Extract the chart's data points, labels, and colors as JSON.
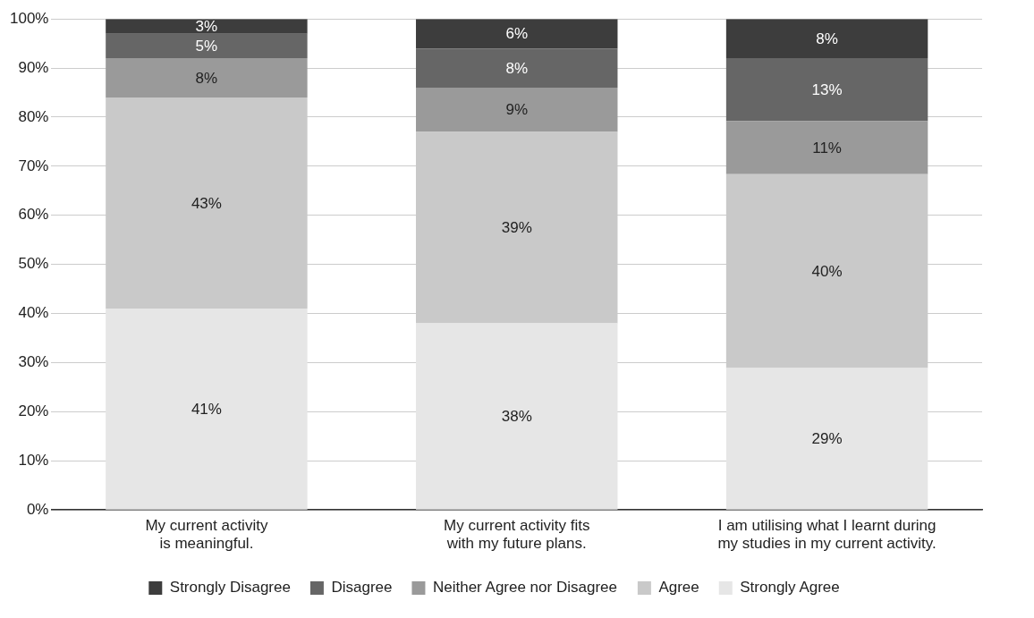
{
  "chart_data": {
    "type": "bar",
    "stacked": true,
    "categories": [
      "My current activity is meaningful.",
      "My current activity fits with my future plans.",
      "I am utilising what I learnt during my studies in my current activity."
    ],
    "series": [
      {
        "name": "Strongly Agree",
        "color": "#e6e6e6",
        "values": [
          41,
          38,
          28.9
        ],
        "value_labels": [
          "41%",
          "38%",
          "29%"
        ]
      },
      {
        "name": "Agree",
        "color": "#c9c9c9",
        "values": [
          43,
          39,
          39.5
        ],
        "value_labels": [
          "43%",
          "39%",
          "40%"
        ]
      },
      {
        "name": "Neither Agree nor Disagree",
        "color": "#9a9a9a",
        "values": [
          8,
          9,
          10.8
        ],
        "value_labels": [
          "8%",
          "9%",
          "11%"
        ]
      },
      {
        "name": "Disagree",
        "color": "#666666",
        "values": [
          5,
          8,
          12.8
        ],
        "value_labels": [
          "5%",
          "8%",
          "13%"
        ]
      },
      {
        "name": "Strongly Disagree",
        "color": "#3d3d3d",
        "values": [
          3,
          6,
          8
        ],
        "value_labels": [
          "3%",
          "6%",
          "8%"
        ]
      }
    ],
    "ylim": [
      0,
      100
    ],
    "yticks": [
      {
        "value": 0,
        "label": "0%"
      },
      {
        "value": 10,
        "label": "10%"
      },
      {
        "value": 20,
        "label": "20%"
      },
      {
        "value": 30,
        "label": "30%"
      },
      {
        "value": 40,
        "label": "40%"
      },
      {
        "value": 50,
        "label": "50%"
      },
      {
        "value": 60,
        "label": "60%"
      },
      {
        "value": 70,
        "label": "70%"
      },
      {
        "value": 80,
        "label": "80%"
      },
      {
        "value": 90,
        "label": "90%"
      },
      {
        "value": 100,
        "label": "100%"
      }
    ],
    "grid": "y",
    "legend": "bottom"
  }
}
